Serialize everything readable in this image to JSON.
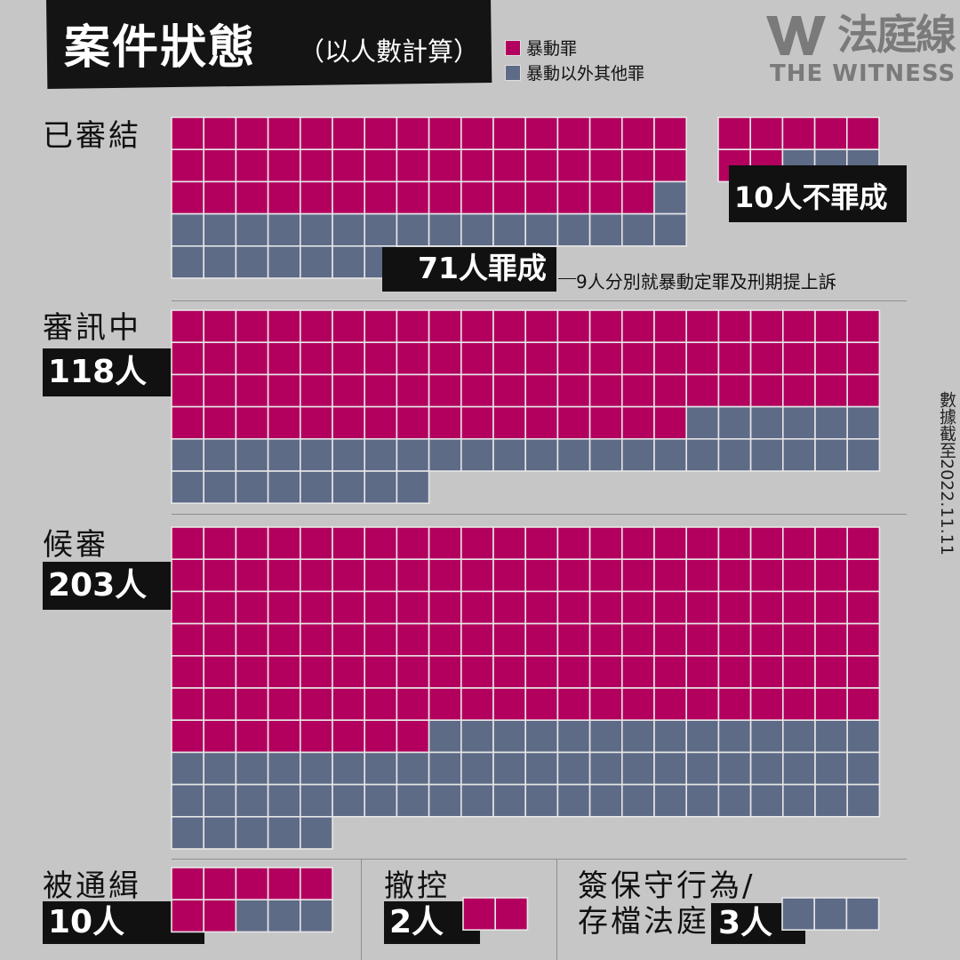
{
  "header": {
    "title": "案件狀態",
    "subtitle": "（以人數計算）"
  },
  "legend": [
    {
      "label": "暴動罪",
      "color": "#b3005e"
    },
    {
      "label": "暴動以外其他罪",
      "color": "#5e6b87"
    }
  ],
  "brand": {
    "mark": "W",
    "name_cn": "法庭線",
    "name_en": "THE WITNESS"
  },
  "date_note": "數據截至2022.11.11",
  "sections": {
    "concluded": {
      "label": "已審結",
      "convicted_text": "71人罪成",
      "convicted_note": "9人分別就暴動定罪及刑期提上訴",
      "acquitted_text": "10人不罪成"
    },
    "on_trial": {
      "label": "審訊中",
      "count_text": "118人"
    },
    "awaiting": {
      "label": "候審",
      "count_text": "203人"
    },
    "wanted": {
      "label": "被通緝",
      "count_text": "10人"
    },
    "withdrawn": {
      "label": "撤控",
      "count_text": "2人"
    },
    "bound_over": {
      "label_line1": "簽保守行為/",
      "label_line2": "存檔法庭",
      "count_text": "3人"
    }
  },
  "chart_data": {
    "type": "waffle",
    "title": "案件狀態",
    "subtitle": "（以人數計算）",
    "unit": "人",
    "series_names": [
      "暴動罪",
      "暴動以外其他罪"
    ],
    "groups": [
      {
        "id": "convicted",
        "section": "已審結",
        "label": "71人罪成",
        "total": 71,
        "riot": 47,
        "other": 24
      },
      {
        "id": "acquitted",
        "section": "已審結",
        "label": "10人不罪成",
        "total": 10,
        "riot": 7,
        "other": 3
      },
      {
        "id": "on_trial",
        "label": "審訊中",
        "total": 118,
        "riot": 82,
        "other": 36
      },
      {
        "id": "awaiting",
        "label": "候審",
        "total": 203,
        "riot": 140,
        "other": 63
      },
      {
        "id": "wanted",
        "label": "被通緝",
        "total": 10,
        "riot": 7,
        "other": 3
      },
      {
        "id": "withdrawn",
        "label": "撤控",
        "total": 2,
        "riot": 2,
        "other": 0
      },
      {
        "id": "bound_over",
        "label": "簽保守行為/存檔法庭",
        "total": 3,
        "riot": 0,
        "other": 3
      }
    ]
  }
}
